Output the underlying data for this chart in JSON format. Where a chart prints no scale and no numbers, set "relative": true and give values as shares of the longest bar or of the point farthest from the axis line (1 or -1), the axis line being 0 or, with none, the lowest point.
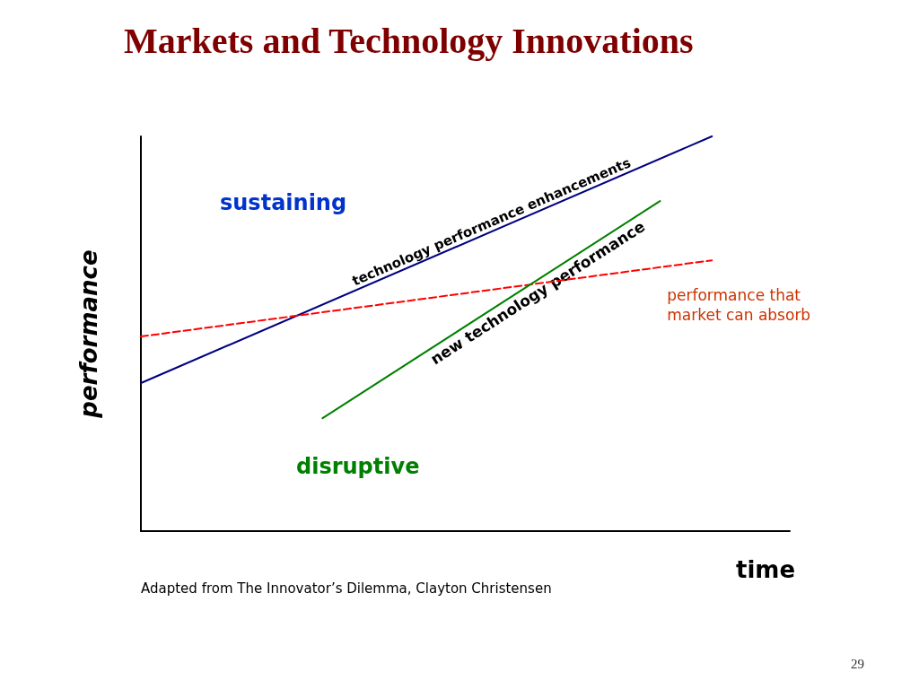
{
  "chart_data": {
    "type": "line",
    "title": "Markets and Technology Innovations",
    "xlabel": "time",
    "ylabel": "performance",
    "relative": true,
    "legend": false,
    "grid": false,
    "categories": [
      null,
      null,
      null,
      null,
      null,
      null,
      null,
      null,
      null,
      null,
      null,
      null,
      null,
      null,
      null,
      null,
      null,
      null,
      null,
      null,
      null,
      null,
      null,
      null,
      null,
      null,
      null,
      null,
      null,
      null,
      null,
      null,
      null,
      null,
      null,
      null,
      null,
      null,
      null,
      null,
      null,
      null,
      null,
      null,
      null,
      null,
      null,
      null,
      null,
      null,
      null
    ],
    "series": [
      {
        "name": "technology performance enhancements",
        "color": "#000080",
        "line_style": "solid",
        "values": [
          0.375,
          null,
          null,
          null,
          null,
          null,
          null,
          null,
          null,
          null,
          null,
          null,
          null,
          null,
          null,
          null,
          null,
          null,
          null,
          null,
          null,
          null,
          null,
          null,
          null,
          null,
          null,
          null,
          null,
          null,
          null,
          null,
          null,
          null,
          null,
          null,
          null,
          null,
          null,
          null,
          null,
          null,
          null,
          null,
          1.0,
          null,
          null,
          null,
          null,
          null,
          null
        ]
      },
      {
        "name": "performance that market can absorb",
        "color": "#ff0000",
        "line_style": "dashed",
        "values": [
          0.493,
          null,
          null,
          null,
          null,
          null,
          null,
          null,
          null,
          null,
          null,
          null,
          null,
          null,
          null,
          null,
          null,
          null,
          null,
          null,
          null,
          null,
          null,
          null,
          null,
          null,
          null,
          null,
          null,
          null,
          null,
          null,
          null,
          null,
          null,
          null,
          null,
          null,
          null,
          null,
          null,
          null,
          null,
          null,
          0.686,
          null,
          null,
          null,
          null,
          null,
          null
        ]
      },
      {
        "name": "new technology performance",
        "color": "#008000",
        "line_style": "solid",
        "values": [
          null,
          null,
          null,
          null,
          null,
          null,
          null,
          null,
          null,
          null,
          null,
          null,
          null,
          null,
          0.286,
          null,
          null,
          null,
          null,
          null,
          null,
          null,
          null,
          null,
          null,
          null,
          null,
          null,
          null,
          null,
          null,
          null,
          null,
          null,
          null,
          null,
          null,
          null,
          null,
          null,
          0.836,
          null,
          null,
          null,
          null,
          null,
          null,
          null,
          null,
          null,
          null
        ]
      }
    ],
    "annotations": [
      "sustaining",
      "disruptive",
      "Adapted from The Innovator’s Dilemma, Clayton Christensen",
      "29"
    ]
  }
}
